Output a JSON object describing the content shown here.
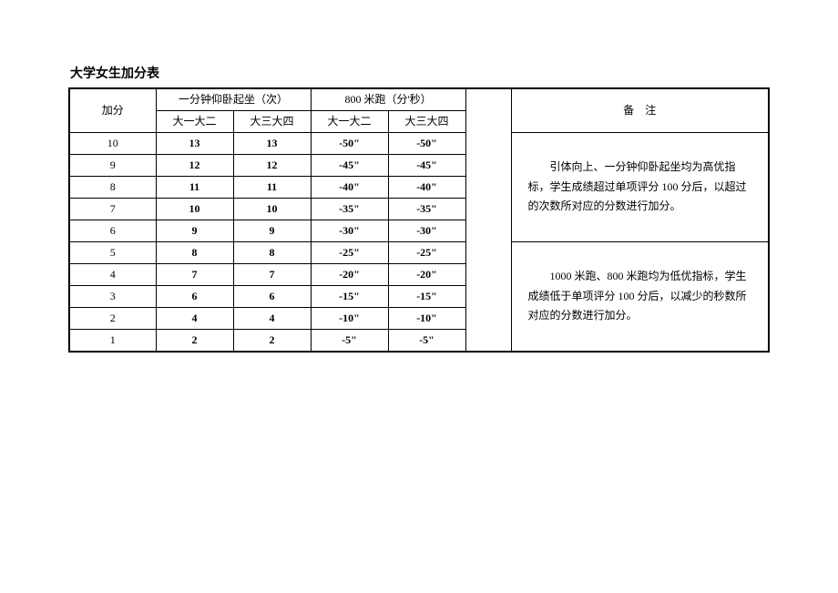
{
  "title": "大学女生加分表",
  "headers": {
    "bonus": "加分",
    "situp": "一分钟仰卧起坐（次）",
    "run800": "800 米跑（分'秒）",
    "note": "备　注",
    "y12": "大一大二",
    "y34": "大三大四"
  },
  "rows": [
    {
      "bonus": "10",
      "s12": "13",
      "s34": "13",
      "r12": "-50\"",
      "r34": "-50\""
    },
    {
      "bonus": "9",
      "s12": "12",
      "s34": "12",
      "r12": "-45\"",
      "r34": "-45\""
    },
    {
      "bonus": "8",
      "s12": "11",
      "s34": "11",
      "r12": "-40\"",
      "r34": "-40\""
    },
    {
      "bonus": "7",
      "s12": "10",
      "s34": "10",
      "r12": "-35\"",
      "r34": "-35\""
    },
    {
      "bonus": "6",
      "s12": "9",
      "s34": "9",
      "r12": "-30\"",
      "r34": "-30\""
    },
    {
      "bonus": "5",
      "s12": "8",
      "s34": "8",
      "r12": "-25\"",
      "r34": "-25\""
    },
    {
      "bonus": "4",
      "s12": "7",
      "s34": "7",
      "r12": "-20\"",
      "r34": "-20\""
    },
    {
      "bonus": "3",
      "s12": "6",
      "s34": "6",
      "r12": "-15\"",
      "r34": "-15\""
    },
    {
      "bonus": "2",
      "s12": "4",
      "s34": "4",
      "r12": "-10\"",
      "r34": "-10\""
    },
    {
      "bonus": "1",
      "s12": "2",
      "s34": "2",
      "r12": "-5\"",
      "r34": "-5\""
    }
  ],
  "notes": {
    "top": "引体向上、一分钟仰卧起坐均为高优指标，学生成绩超过单项评分 100 分后，以超过的次数所对应的分数进行加分。",
    "bottom": "1000 米跑、800 米跑均为低优指标，学生成绩低于单项评分 100 分后，以减少的秒数所对应的分数进行加分。"
  },
  "style": {
    "background": "#ffffff",
    "border_color": "#000000",
    "font_size_body": 12,
    "font_size_title": 14
  }
}
